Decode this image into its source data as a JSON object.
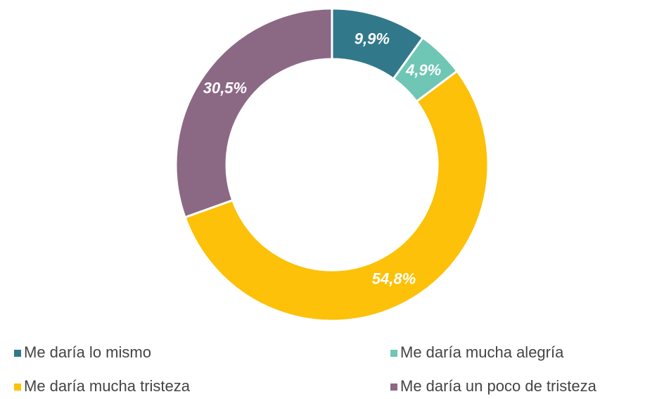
{
  "chart_data": {
    "type": "donut",
    "categories": [
      "Me daría lo mismo",
      "Me daría mucha alegría",
      "Me daría mucha tristeza",
      "Me daría un poco de tristeza"
    ],
    "values": [
      9.9,
      4.9,
      54.8,
      30.5
    ],
    "value_labels": [
      "9,9%",
      "4,9%",
      "54,8%",
      "30,5%"
    ],
    "colors": [
      "#31788a",
      "#6fc6b5",
      "#fcc108",
      "#8b6985"
    ],
    "legend": "bottom"
  }
}
